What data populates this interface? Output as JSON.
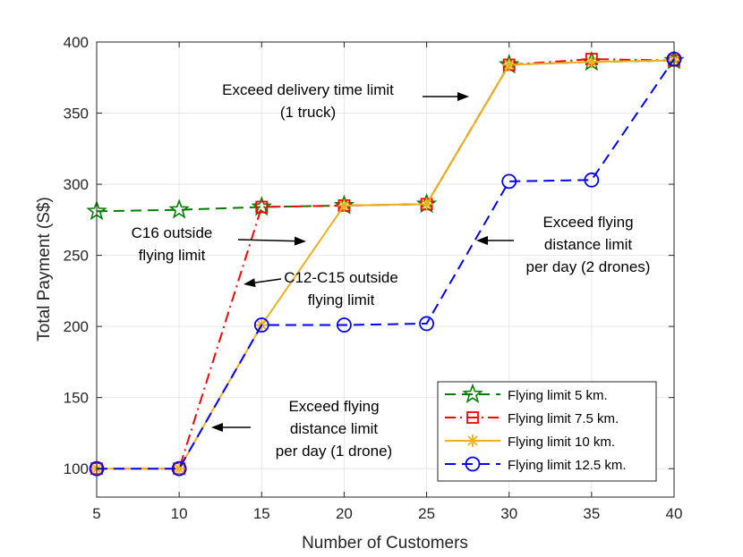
{
  "chart_data": {
    "type": "line",
    "title": "",
    "xlabel": "Number of Customers",
    "ylabel": "Total Payment (S$)",
    "xlim": [
      5,
      40
    ],
    "ylim": [
      80,
      400
    ],
    "xticks": [
      5,
      10,
      15,
      20,
      25,
      30,
      35,
      40
    ],
    "yticks": [
      100,
      150,
      200,
      250,
      300,
      350,
      400
    ],
    "grid": true,
    "legend_position": "bottom-right",
    "x": [
      5,
      10,
      15,
      20,
      25,
      30,
      35,
      40
    ],
    "series": [
      {
        "name": "Flying limit 5 km.",
        "color": "#008000",
        "dash": "dashed",
        "marker": "star",
        "values": [
          281,
          282,
          284,
          285,
          286,
          384,
          386,
          387
        ]
      },
      {
        "name": "Flying limit 7.5 km.",
        "color": "#ff0000",
        "dash": "dash-dot",
        "marker": "square",
        "values": [
          100,
          100,
          284,
          285,
          286,
          384,
          388,
          387
        ]
      },
      {
        "name": "Flying limit 10 km.",
        "color": "#edb120",
        "dash": "solid",
        "marker": "asterisk",
        "values": [
          100,
          100,
          201,
          285,
          286,
          384,
          386,
          387
        ]
      },
      {
        "name": "Flying limit 12.5 km.",
        "color": "#0000ff",
        "dash": "dashed",
        "marker": "circle",
        "values": [
          100,
          100,
          201,
          201,
          202,
          302,
          303,
          388
        ]
      }
    ],
    "annotations": [
      {
        "id": "delivery",
        "lines": [
          "Exceed delivery time limit",
          "(1 truck)"
        ]
      },
      {
        "id": "c16",
        "lines": [
          "C16  outside",
          "flying limit"
        ]
      },
      {
        "id": "c12",
        "lines": [
          "C12-C15  outside",
          "flying limit"
        ]
      },
      {
        "id": "two-drones",
        "lines": [
          "Exceed flying",
          "distance limit",
          "per day (2 drones)"
        ]
      },
      {
        "id": "one-drone",
        "lines": [
          "Exceed flying",
          "distance limit",
          "per day (1 drone)"
        ]
      }
    ]
  }
}
